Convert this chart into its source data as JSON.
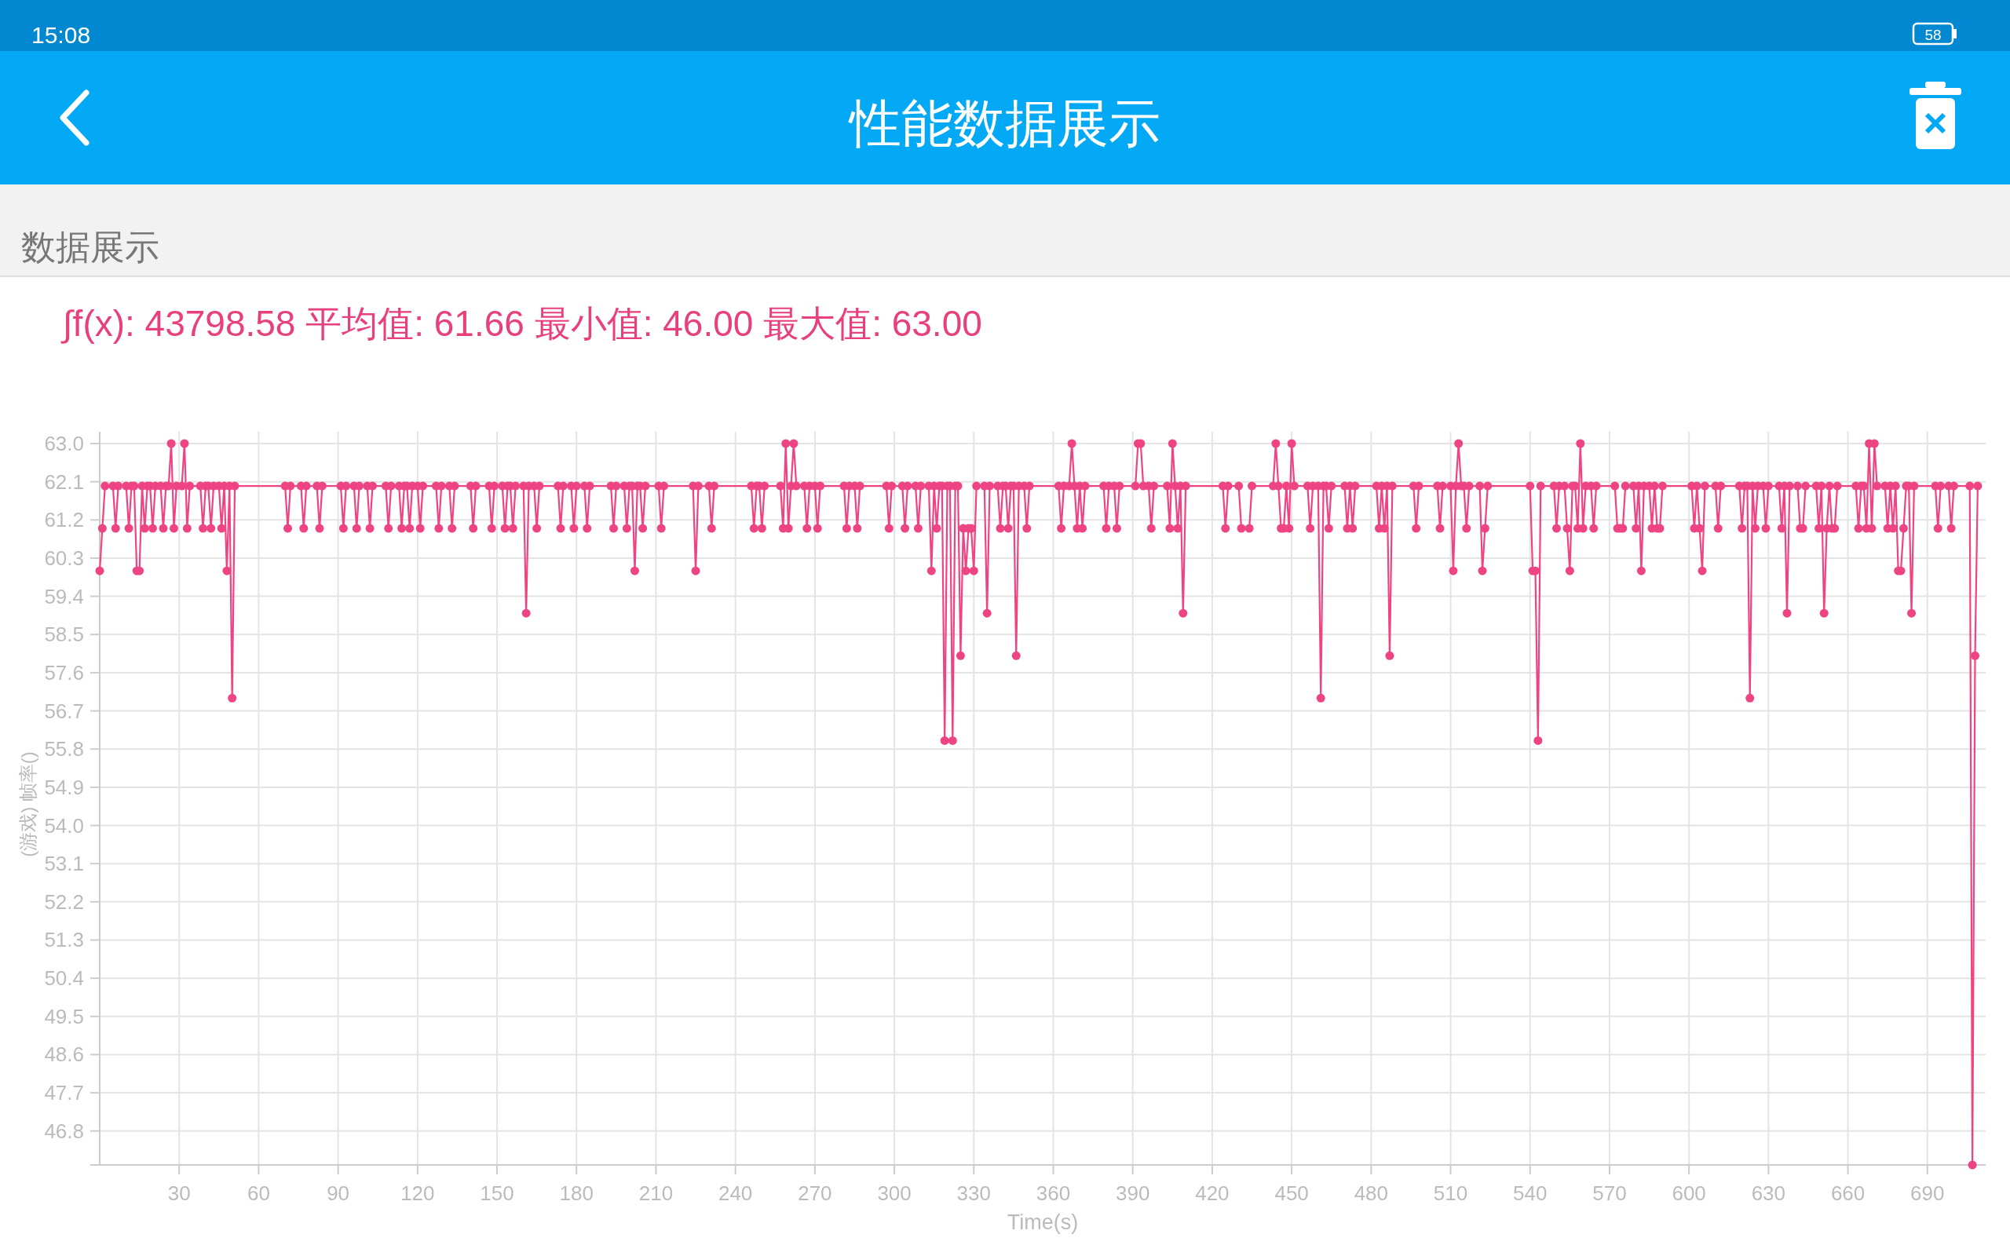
{
  "chart_data": {
    "type": "line",
    "title": "性能数据展示",
    "subtitle": "数据展示",
    "xlabel": "Time(s)",
    "ylabel": "(游戏) 帧率()",
    "annotations": [
      "∫f(x): 43798.58 平均值: 61.66 最小值: 46.00 最大值: 63.00",
      "15:08",
      "58"
    ],
    "xlim": [
      0,
      712
    ],
    "ylim": [
      46,
      63
    ],
    "xticks": [
      30,
      60,
      90,
      120,
      150,
      180,
      210,
      240,
      270,
      300,
      330,
      360,
      390,
      420,
      450,
      480,
      510,
      540,
      570,
      600,
      630,
      660,
      690
    ],
    "yticks": [
      {
        "value": 46.8,
        "label": "46.8"
      },
      {
        "value": 47.7,
        "label": "47.7"
      },
      {
        "value": 48.6,
        "label": "48.6"
      },
      {
        "value": 49.5,
        "label": "49.5"
      },
      {
        "value": 50.4,
        "label": "50.4"
      },
      {
        "value": 51.3,
        "label": "51.3"
      },
      {
        "value": 52.2,
        "label": "52.2"
      },
      {
        "value": 53.1,
        "label": "53.1"
      },
      {
        "value": 54,
        "label": "54.0"
      },
      {
        "value": 54.9,
        "label": "54.9"
      },
      {
        "value": 55.8,
        "label": "55.8"
      },
      {
        "value": 56.7,
        "label": "56.7"
      },
      {
        "value": 57.6,
        "label": "57.6"
      },
      {
        "value": 58.5,
        "label": "58.5"
      },
      {
        "value": 59.4,
        "label": "59.4"
      },
      {
        "value": 60.3,
        "label": "60.3"
      },
      {
        "value": 61.2,
        "label": "61.2"
      },
      {
        "value": 62.1,
        "label": "62.1"
      },
      {
        "value": 63,
        "label": "63.0"
      }
    ],
    "grid": true,
    "marker": "circle",
    "line_style": "solid",
    "x": [
      0,
      1,
      2,
      5,
      6,
      7,
      10,
      11,
      12,
      13,
      14,
      15,
      16,
      17,
      18,
      19,
      20,
      21,
      23,
      24,
      25,
      26,
      27,
      28,
      29,
      31,
      32,
      33,
      34,
      38,
      39,
      40,
      41,
      42,
      43,
      45,
      46,
      47,
      48,
      49,
      50,
      51,
      70,
      71,
      72,
      76,
      77,
      78,
      82,
      83,
      84,
      91,
      92,
      93,
      96,
      97,
      98,
      101,
      102,
      103,
      108,
      109,
      110,
      113,
      114,
      115,
      116,
      117,
      118,
      120,
      121,
      122,
      127,
      128,
      129,
      132,
      133,
      134,
      140,
      141,
      142,
      147,
      148,
      149,
      152,
      153,
      154,
      155,
      156,
      157,
      160,
      161,
      162,
      164,
      165,
      166,
      173,
      174,
      175,
      178,
      179,
      180,
      183,
      184,
      185,
      193,
      194,
      195,
      198,
      199,
      200,
      201,
      202,
      203,
      204,
      205,
      206,
      211,
      212,
      213,
      224,
      225,
      226,
      230,
      231,
      232,
      246,
      247,
      248,
      249,
      250,
      251,
      257,
      258,
      259,
      260,
      261,
      262,
      263,
      266,
      267,
      268,
      270,
      271,
      272,
      281,
      282,
      283,
      285,
      286,
      287,
      297,
      298,
      299,
      303,
      304,
      305,
      308,
      309,
      310,
      313,
      314,
      315,
      316,
      317,
      318,
      319,
      320,
      321,
      322,
      323,
      324,
      325,
      326,
      327,
      328,
      329,
      330,
      331,
      334,
      335,
      336,
      339,
      340,
      341,
      342,
      343,
      344,
      345,
      346,
      347,
      349,
      350,
      351,
      362,
      363,
      364,
      366,
      367,
      368,
      369,
      370,
      371,
      372,
      379,
      380,
      381,
      383,
      384,
      385,
      391,
      392,
      393,
      394,
      396,
      397,
      398,
      403,
      404,
      405,
      406,
      407,
      408,
      409,
      410,
      424,
      425,
      426,
      430,
      431,
      434,
      435,
      443,
      444,
      445,
      446,
      447,
      448,
      449,
      450,
      451,
      456,
      457,
      458,
      460,
      461,
      462,
      463,
      464,
      465,
      470,
      471,
      472,
      473,
      474,
      482,
      483,
      484,
      485,
      486,
      487,
      488,
      496,
      497,
      498,
      505,
      506,
      507,
      510,
      511,
      512,
      513,
      514,
      515,
      516,
      517,
      521,
      522,
      523,
      524,
      540,
      541,
      542,
      543,
      544,
      549,
      550,
      551,
      553,
      554,
      555,
      556,
      557,
      558,
      559,
      560,
      561,
      563,
      564,
      565,
      572,
      573,
      574,
      575,
      576,
      579,
      580,
      581,
      582,
      583,
      585,
      586,
      587,
      588,
      589,
      590,
      601,
      602,
      603,
      604,
      605,
      606,
      610,
      611,
      612,
      619,
      620,
      621,
      622,
      623,
      624,
      625,
      626,
      628,
      629,
      630,
      634,
      635,
      636,
      637,
      638,
      641,
      642,
      643,
      644,
      648,
      649,
      650,
      651,
      652,
      653,
      654,
      655,
      656,
      663,
      664,
      665,
      666,
      667,
      668,
      669,
      670,
      671,
      674,
      675,
      676,
      677,
      678,
      679,
      680,
      681,
      682,
      683,
      684,
      685,
      693,
      694,
      695,
      698,
      699,
      700,
      706,
      707,
      708,
      709
    ],
    "series": [
      {
        "color": "#ee4483",
        "values": [
          60,
          61,
          62,
          62,
          61,
          62,
          62,
          61,
          62,
          62,
          60,
          60,
          62,
          61,
          62,
          62,
          61,
          62,
          62,
          61,
          62,
          62,
          63,
          61,
          62,
          62,
          63,
          61,
          62,
          62,
          61,
          62,
          62,
          61,
          62,
          62,
          61,
          62,
          60,
          62,
          57,
          62,
          62,
          61,
          62,
          62,
          61,
          62,
          62,
          61,
          62,
          62,
          61,
          62,
          62,
          61,
          62,
          62,
          61,
          62,
          62,
          61,
          62,
          62,
          61,
          62,
          62,
          61,
          62,
          62,
          61,
          62,
          62,
          61,
          62,
          62,
          61,
          62,
          62,
          61,
          62,
          62,
          61,
          62,
          62,
          61,
          62,
          62,
          61,
          62,
          62,
          59,
          62,
          62,
          61,
          62,
          62,
          61,
          62,
          62,
          61,
          62,
          62,
          61,
          62,
          62,
          61,
          62,
          62,
          61,
          62,
          62,
          60,
          62,
          62,
          61,
          62,
          62,
          61,
          62,
          62,
          60,
          62,
          62,
          61,
          62,
          62,
          61,
          62,
          62,
          61,
          62,
          62,
          61,
          63,
          61,
          62,
          63,
          62,
          62,
          61,
          62,
          62,
          61,
          62,
          62,
          61,
          62,
          62,
          61,
          62,
          62,
          61,
          62,
          62,
          61,
          62,
          62,
          61,
          62,
          62,
          60,
          62,
          61,
          62,
          62,
          56,
          62,
          62,
          56,
          62,
          62,
          58,
          61,
          60,
          61,
          61,
          60,
          62,
          62,
          59,
          62,
          62,
          61,
          62,
          62,
          61,
          62,
          62,
          58,
          62,
          62,
          61,
          62,
          62,
          61,
          62,
          62,
          63,
          62,
          61,
          62,
          61,
          62,
          62,
          61,
          62,
          62,
          61,
          62,
          62,
          63,
          63,
          62,
          62,
          61,
          62,
          62,
          61,
          63,
          62,
          61,
          62,
          59,
          62,
          62,
          61,
          62,
          62,
          61,
          61,
          62,
          62,
          63,
          62,
          61,
          61,
          62,
          61,
          63,
          62,
          62,
          61,
          62,
          62,
          57,
          62,
          62,
          61,
          62,
          62,
          61,
          62,
          61,
          62,
          62,
          61,
          62,
          61,
          62,
          58,
          62,
          62,
          61,
          62,
          62,
          61,
          62,
          62,
          60,
          62,
          63,
          62,
          62,
          61,
          62,
          62,
          60,
          61,
          62,
          62,
          60,
          60,
          56,
          62,
          62,
          61,
          62,
          62,
          61,
          60,
          62,
          62,
          61,
          63,
          61,
          62,
          62,
          61,
          62,
          62,
          61,
          61,
          61,
          62,
          62,
          61,
          62,
          60,
          62,
          62,
          61,
          62,
          61,
          61,
          62,
          62,
          61,
          62,
          61,
          60,
          62,
          62,
          61,
          62,
          62,
          61,
          62,
          62,
          57,
          62,
          61,
          62,
          62,
          61,
          62,
          62,
          61,
          62,
          59,
          62,
          62,
          61,
          61,
          62,
          62,
          61,
          62,
          59,
          61,
          62,
          61,
          61,
          62,
          62,
          61,
          62,
          62,
          61,
          63,
          61,
          63,
          62,
          62,
          61,
          62,
          61,
          62,
          60,
          60,
          61,
          62,
          62,
          59,
          62,
          62,
          61,
          62,
          62,
          61,
          62,
          62,
          46,
          58,
          62
        ]
      }
    ]
  }
}
